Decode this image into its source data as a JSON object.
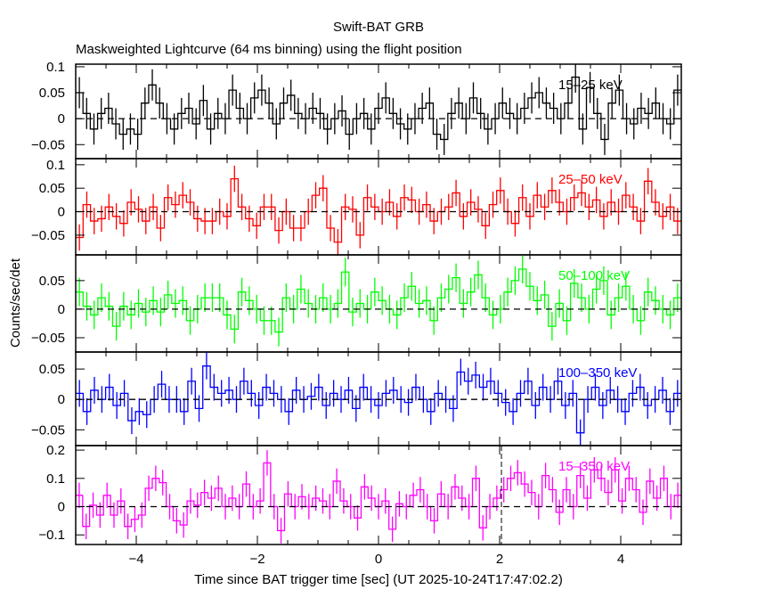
{
  "chart_data": {
    "type": "line",
    "title": "Swift-BAT GRB",
    "subtitle": "Maskweighted Lightcurve (64 ms binning) using the flight position",
    "xlabel": "Time since BAT trigger time [sec] (UT 2025-10-24T17:47:02.2)",
    "ylabel": "Counts/sec/det",
    "xlim": [
      -5,
      5
    ],
    "x_ticks": [
      -4,
      -2,
      0,
      2,
      4
    ],
    "x_tick_labels": [
      "−4",
      "−2",
      "0",
      "2",
      "4"
    ],
    "grid": false,
    "panels": [
      {
        "name": "15-25 keV",
        "label": "15–25 keV",
        "color": "#000000",
        "ylim": [
          -0.077,
          0.105
        ],
        "y_ticks": [
          -0.05,
          0,
          0.05,
          0.1
        ],
        "y_tick_labels": [
          "−0.05",
          "0",
          "0.05",
          "0.1"
        ],
        "error": 0.03,
        "values": [
          0.05,
          0.01,
          -0.02,
          0.01,
          0.02,
          -0.01,
          -0.03,
          -0.02,
          -0.03,
          0.03,
          0.065,
          0.03,
          0.0,
          -0.02,
          0.01,
          0.02,
          -0.01,
          0.035,
          -0.02,
          0.01,
          0.0,
          0.055,
          0.02,
          0.0,
          0.04,
          0.055,
          0.03,
          -0.01,
          0.03,
          0.045,
          0.01,
          0.0,
          0.02,
          0.01,
          -0.02,
          0.0,
          0.015,
          -0.03,
          0.0,
          0.01,
          -0.02,
          0.02,
          0.04,
          0.01,
          -0.01,
          -0.02,
          0.0,
          0.02,
          0.03,
          -0.03,
          -0.04,
          0.01,
          0.03,
          0.0,
          0.04,
          0.01,
          -0.02,
          0.0,
          0.03,
          0.01,
          0.0,
          0.02,
          0.04,
          0.05,
          0.03,
          0.02,
          0.0,
          0.03,
          0.08,
          -0.02,
          0.06,
          0.01,
          -0.04,
          0.03,
          0.055,
          0.0,
          -0.01,
          0.02,
          0.01,
          0.03,
          0.0,
          -0.01,
          0.055
        ]
      },
      {
        "name": "25-50 keV",
        "label": "25–50 keV",
        "color": "#ff0000",
        "ylim": [
          -0.092,
          0.113
        ],
        "y_ticks": [
          -0.05,
          0,
          0.05,
          0.1
        ],
        "y_tick_labels": [
          "−0.05",
          "0",
          "0.05",
          "0.1"
        ],
        "error": 0.028,
        "values": [
          -0.055,
          0.015,
          -0.02,
          -0.015,
          0.01,
          -0.01,
          -0.025,
          0.02,
          0.005,
          -0.02,
          0.01,
          -0.035,
          0.03,
          0.015,
          0.035,
          0.02,
          -0.015,
          -0.02,
          -0.02,
          0.0,
          -0.01,
          0.07,
          0.01,
          -0.015,
          -0.03,
          0.01,
          0.01,
          -0.04,
          0.0,
          -0.035,
          -0.035,
          0.0,
          0.035,
          0.05,
          -0.035,
          -0.065,
          0.01,
          0.005,
          -0.05,
          0.03,
          0.01,
          0.0,
          0.02,
          -0.01,
          0.03,
          0.025,
          0.0,
          0.015,
          -0.02,
          0.0,
          0.01,
          0.04,
          -0.01,
          0.02,
          0.005,
          -0.03,
          0.015,
          0.045,
          0.0,
          -0.025,
          0.03,
          -0.01,
          0.035,
          0.01,
          0.045,
          0.02,
          0.0,
          0.03,
          0.04,
          0.01,
          0.025,
          -0.01,
          0.02,
          0.0,
          0.035,
          0.01,
          -0.02,
          0.065,
          0.02,
          -0.01,
          0.01,
          -0.02
        ]
      },
      {
        "name": "50-100 keV",
        "label": "50–100 keV",
        "color": "#00ff00",
        "ylim": [
          -0.075,
          0.095
        ],
        "y_ticks": [
          -0.05,
          0,
          0.05
        ],
        "y_tick_labels": [
          "−0.05",
          "0",
          "0.05"
        ],
        "error": 0.025,
        "values": [
          0.03,
          0.005,
          -0.01,
          0.02,
          0.005,
          -0.03,
          0.005,
          -0.01,
          0.01,
          -0.005,
          0.015,
          -0.005,
          0.025,
          0.01,
          0.015,
          -0.02,
          0.0,
          0.02,
          0.02,
          0.02,
          -0.01,
          -0.035,
          0.03,
          0.015,
          0.0,
          -0.02,
          -0.02,
          -0.04,
          0.02,
          0.0,
          0.035,
          0.01,
          0.0,
          0.02,
          0.0,
          0.01,
          0.065,
          -0.005,
          0.01,
          0.0,
          0.03,
          0.015,
          0.0,
          -0.01,
          0.02,
          0.04,
          0.01,
          0.015,
          -0.02,
          0.02,
          0.035,
          0.055,
          0.01,
          0.03,
          0.06,
          0.02,
          -0.01,
          0.0,
          0.03,
          0.05,
          0.07,
          0.04,
          0.015,
          0.025,
          -0.03,
          0.01,
          -0.02,
          0.045,
          0.02,
          0.0,
          0.035,
          0.05,
          -0.01,
          0.02,
          0.04,
          0.0,
          -0.02,
          0.03,
          0.015,
          0.0,
          -0.01,
          0.02
        ]
      },
      {
        "name": "100-350 keV",
        "label": "100–350 keV",
        "color": "#0000ff",
        "ylim": [
          -0.076,
          0.078
        ],
        "y_ticks": [
          -0.05,
          0,
          0.05
        ],
        "y_tick_labels": [
          "−0.05",
          "0",
          "0.05"
        ],
        "error": 0.022,
        "values": [
          0.01,
          -0.02,
          0.015,
          0.0,
          0.02,
          -0.01,
          0.01,
          -0.035,
          -0.02,
          -0.025,
          0.0,
          0.025,
          0.0,
          0.0,
          -0.02,
          0.03,
          -0.015,
          0.055,
          0.02,
          0.01,
          0.015,
          0.0,
          0.03,
          0.01,
          -0.01,
          0.02,
          0.01,
          0.0,
          -0.02,
          0.015,
          0.0,
          0.005,
          0.02,
          -0.01,
          0.01,
          0.0,
          0.015,
          -0.015,
          0.02,
          0.0,
          -0.01,
          0.01,
          0.015,
          0.0,
          -0.005,
          0.02,
          0.0,
          -0.02,
          0.01,
          0.0,
          -0.015,
          0.045,
          0.03,
          0.04,
          0.02,
          0.03,
          0.01,
          -0.005,
          -0.02,
          0.01,
          0.03,
          -0.01,
          0.02,
          0.0,
          0.03,
          -0.01,
          0.01,
          -0.055,
          0.0,
          0.02,
          -0.01,
          0.015,
          0.0,
          -0.02,
          0.01,
          0.02,
          -0.01,
          0.0,
          0.015,
          -0.02,
          0.01
        ]
      },
      {
        "name": "15-350 keV",
        "label": "15–350 keV",
        "color": "#ff00ff",
        "ylim": [
          -0.134,
          0.216
        ],
        "y_ticks": [
          -0.1,
          0,
          0.1,
          0.2
        ],
        "y_tick_labels": [
          "−0.1",
          "0",
          "0.1",
          "0.2"
        ],
        "error": 0.045,
        "values": [
          0.04,
          -0.07,
          0.005,
          -0.03,
          0.04,
          -0.03,
          0.02,
          -0.07,
          -0.045,
          -0.03,
          0.065,
          0.1,
          0.085,
          0.0,
          -0.05,
          -0.065,
          0.02,
          0.005,
          0.05,
          0.03,
          0.065,
          0.0,
          0.03,
          0.0,
          0.08,
          0.0,
          0.02,
          0.155,
          0.0,
          -0.085,
          0.045,
          0.0,
          0.035,
          0.0,
          0.03,
          0.02,
          0.0,
          0.09,
          0.02,
          0.0,
          -0.04,
          0.07,
          0.03,
          0.0,
          0.02,
          -0.08,
          0.01,
          0.0,
          0.04,
          0.06,
          0.0,
          -0.05,
          0.045,
          0.0,
          0.07,
          0.03,
          0.0,
          0.1,
          -0.075,
          0.0,
          0.03,
          0.06,
          0.1,
          0.12,
          0.08,
          0.05,
          0.0,
          0.11,
          0.06,
          -0.02,
          0.06,
          0.0,
          0.11,
          0.03,
          0.13,
          0.1,
          0.05,
          0.13,
          0.02,
          0.1,
          0.06,
          -0.02,
          0.09,
          0.03,
          0.1,
          0.0,
          0.04
        ]
      }
    ],
    "annotations": [
      {
        "type": "vertical-dashed-line",
        "panel": "15-350 keV",
        "x": 2.03
      }
    ]
  }
}
